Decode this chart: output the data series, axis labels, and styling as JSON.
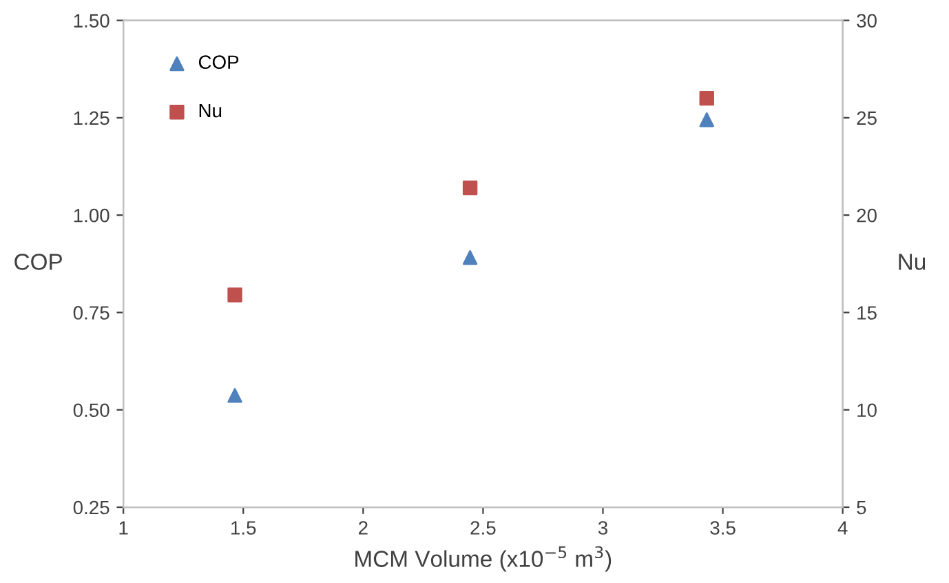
{
  "chart_data": {
    "type": "scatter",
    "xlabel": "MCM Volume (x10$^{−5}$ m$^{3}$)",
    "ylabel": "COP",
    "y2label": "Nu",
    "series": [
      {
        "name": "COP",
        "color": "#4f81bd",
        "marker": "triangle",
        "x": [
          1.465,
          2.446,
          3.433
        ],
        "values": [
          0.537,
          0.891,
          1.245
        ]
      },
      {
        "name": "Nu",
        "color": "#c0504d",
        "marker": "square",
        "axis": "y2",
        "x": [
          1.465,
          2.446,
          3.433
        ],
        "values": [
          15.9,
          21.4,
          26.0
        ]
      }
    ],
    "xlim": [
      1,
      4
    ],
    "xticks": [
      1,
      1.5,
      2,
      2.5,
      3,
      3.5,
      4
    ],
    "ylim": [
      0.25,
      1.5
    ],
    "yticks": [
      {
        "value": 0.25,
        "label": "0.25"
      },
      {
        "value": 0.5,
        "label": "0.50"
      },
      {
        "value": 0.75,
        "label": "0.75"
      },
      {
        "value": 1.0,
        "label": "1.00"
      },
      {
        "value": 1.25,
        "label": "1.25"
      },
      {
        "value": 1.5,
        "label": "1.50"
      }
    ],
    "y2lim": [
      5,
      30
    ],
    "y2ticks": [
      5,
      10,
      15,
      20,
      25,
      30
    ],
    "grid": false,
    "legend": "top left"
  }
}
